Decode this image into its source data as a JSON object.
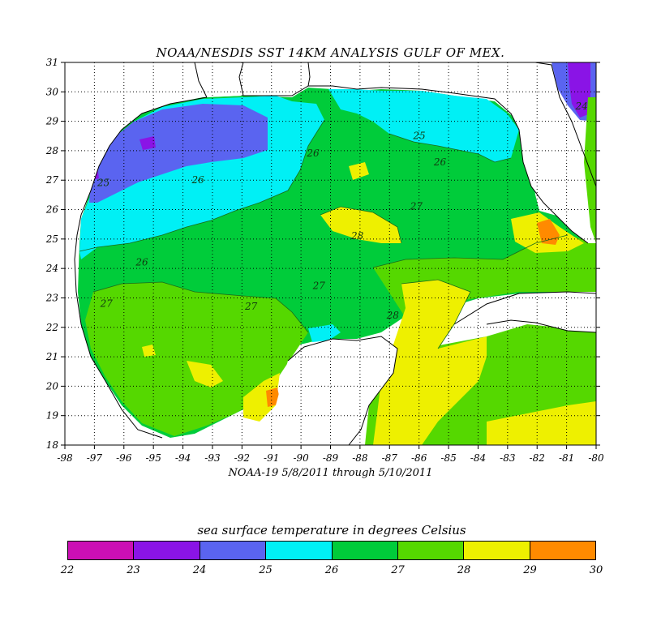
{
  "title": "NOAA/NESDIS SST 14KM ANALYSIS GULF OF MEX.",
  "subtitle": "NOAA-19  5/8/2011 through 5/10/2011",
  "colorbar": {
    "title": "sea surface temperature in degrees Celsius",
    "labels": [
      "22",
      "23",
      "24",
      "25",
      "26",
      "27",
      "28",
      "29",
      "30"
    ],
    "colors": [
      "#cc0fb4",
      "#8a14e6",
      "#5a64f0",
      "#00f0f5",
      "#00cc3a",
      "#55d800",
      "#eef000",
      "#ff8a00"
    ]
  },
  "map_data": {
    "lon_range": [
      -98,
      -80
    ],
    "lat_range": [
      18,
      31
    ],
    "lon_ticks": [
      "-98",
      "-97",
      "-96",
      "-95",
      "-94",
      "-93",
      "-92",
      "-91",
      "-90",
      "-89",
      "-88",
      "-87",
      "-86",
      "-85",
      "-84",
      "-83",
      "-82",
      "-81",
      "-80"
    ],
    "lat_ticks": [
      "18",
      "19",
      "20",
      "21",
      "22",
      "23",
      "24",
      "25",
      "26",
      "27",
      "28",
      "29",
      "30",
      "31"
    ],
    "grid": "dotted",
    "contour_labels": [
      {
        "text": "25",
        "lon": -96.9,
        "lat": 26.8
      },
      {
        "text": "26",
        "lon": -93.7,
        "lat": 26.9
      },
      {
        "text": "26",
        "lon": -89.8,
        "lat": 27.8
      },
      {
        "text": "26",
        "lon": -85.5,
        "lat": 27.5
      },
      {
        "text": "26",
        "lon": -95.6,
        "lat": 24.1
      },
      {
        "text": "25",
        "lon": -86.2,
        "lat": 28.4
      },
      {
        "text": "27",
        "lon": -86.3,
        "lat": 26.0
      },
      {
        "text": "28",
        "lon": -88.3,
        "lat": 25.0
      },
      {
        "text": "27",
        "lon": -89.6,
        "lat": 23.3
      },
      {
        "text": "27",
        "lon": -96.8,
        "lat": 22.7
      },
      {
        "text": "27",
        "lon": -91.9,
        "lat": 22.6
      },
      {
        "text": "28",
        "lon": -87.1,
        "lat": 22.3
      },
      {
        "text": "24",
        "lon": -80.7,
        "lat": 29.4
      }
    ]
  }
}
